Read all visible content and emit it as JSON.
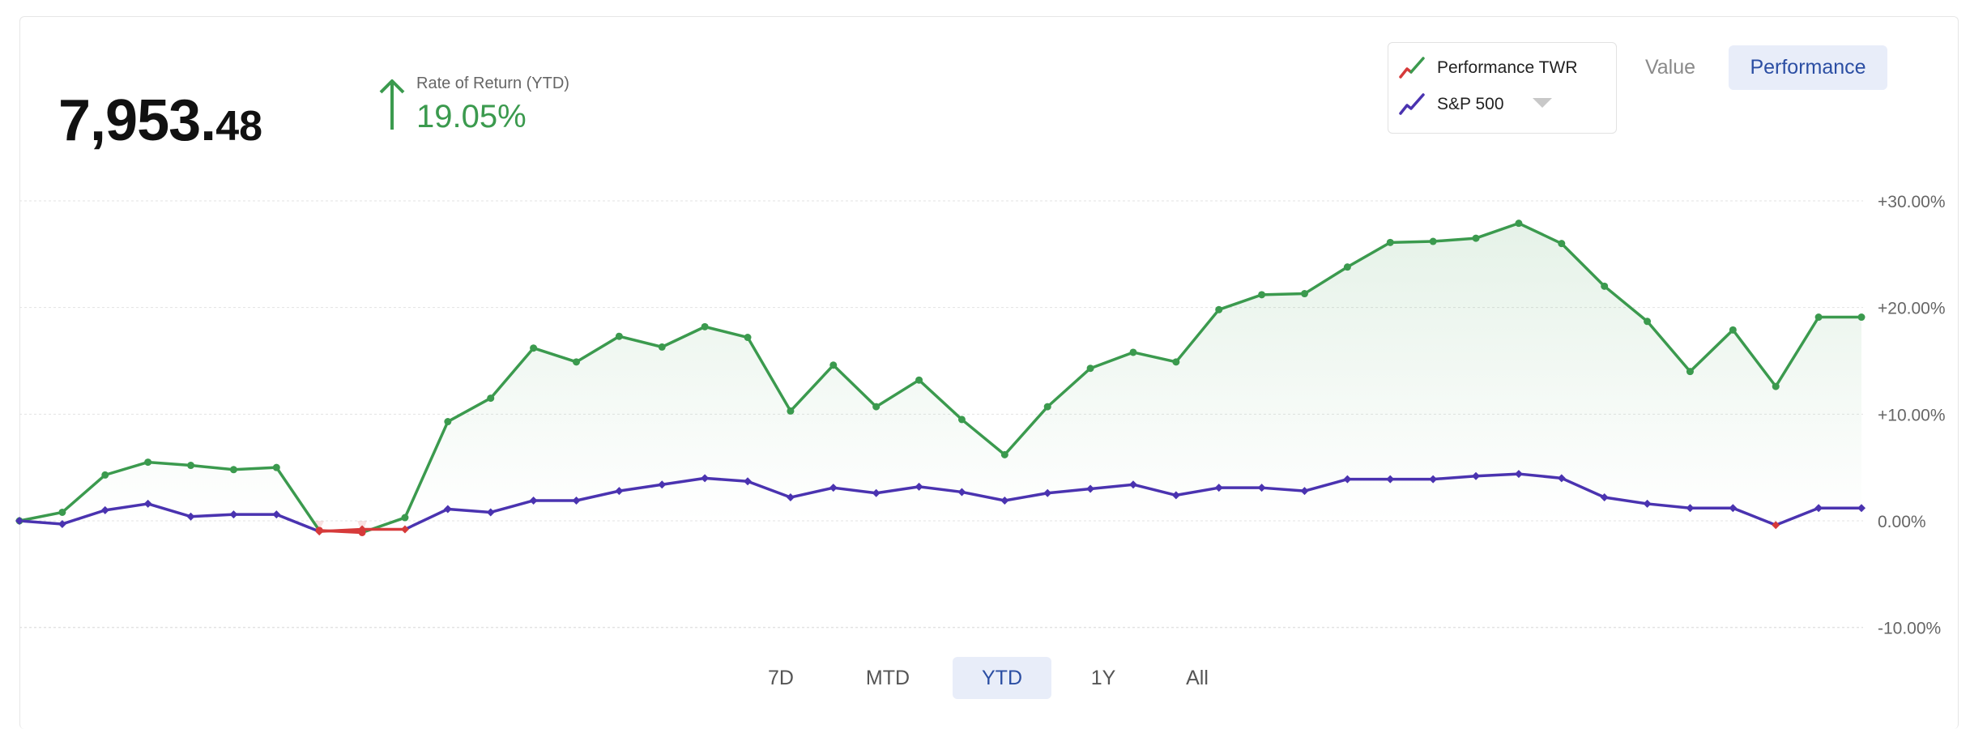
{
  "summary": {
    "value_main": "7,953.",
    "value_cents": "48",
    "ror_label": "Rate of Return (YTD)",
    "ror_value": "19.05%"
  },
  "legend": {
    "items": [
      {
        "label": "Performance TWR",
        "icon": "performance-line-icon"
      },
      {
        "label": "S&P 500",
        "icon": "benchmark-line-icon"
      }
    ]
  },
  "view_toggle": {
    "value_label": "Value",
    "performance_label": "Performance",
    "selected": "Performance"
  },
  "ranges": {
    "items": [
      "7D",
      "MTD",
      "YTD",
      "1Y",
      "All"
    ],
    "selected": "YTD"
  },
  "colors": {
    "performance": "#3b9a4e",
    "negative": "#d63a3a",
    "benchmark": "#4a33b0",
    "grid": "#e3e3e3",
    "accent_bg": "#e8edf9",
    "accent_text": "#2b4ea3"
  },
  "chart_data": {
    "type": "line",
    "ylim": [
      -10,
      30
    ],
    "yticks": [
      30,
      20,
      10,
      0,
      -10
    ],
    "ytick_labels": [
      "+30.00%",
      "+20.00%",
      "+10.00%",
      "0.00%",
      "-10.00%"
    ],
    "grid": true,
    "x": [
      0,
      1,
      2,
      3,
      4,
      5,
      6,
      7,
      8,
      9,
      10,
      11,
      12,
      13,
      14,
      15,
      16,
      17,
      18,
      19,
      20,
      21,
      22,
      23,
      24,
      25,
      26,
      27,
      28,
      29,
      30,
      31,
      32,
      33,
      34,
      35,
      36,
      37,
      38,
      39,
      40,
      41,
      42,
      43
    ],
    "series": [
      {
        "name": "Performance TWR",
        "values": [
          0.0,
          0.8,
          4.3,
          5.5,
          5.2,
          4.8,
          5.0,
          -0.9,
          -1.1,
          0.3,
          9.3,
          11.5,
          16.2,
          14.9,
          17.3,
          16.3,
          18.2,
          17.2,
          10.3,
          14.6,
          10.7,
          13.2,
          9.5,
          6.2,
          10.7,
          14.3,
          15.8,
          14.9,
          19.8,
          21.2,
          21.3,
          23.8,
          26.1,
          26.2,
          26.5,
          27.9,
          26.0,
          22.0,
          18.7,
          14.0,
          17.9,
          12.6,
          19.1,
          19.1
        ]
      },
      {
        "name": "S&P 500",
        "values": [
          0.0,
          -0.3,
          1.0,
          1.6,
          0.4,
          0.6,
          0.6,
          -1.0,
          -0.8,
          -0.8,
          1.1,
          0.8,
          1.9,
          1.9,
          2.8,
          3.4,
          4.0,
          3.7,
          2.2,
          3.1,
          2.6,
          3.2,
          2.7,
          1.9,
          2.6,
          3.0,
          3.4,
          2.4,
          3.1,
          3.1,
          2.8,
          3.9,
          3.9,
          3.9,
          4.2,
          4.4,
          4.0,
          2.2,
          1.6,
          1.2,
          1.2,
          -0.4,
          1.2,
          1.2
        ]
      }
    ]
  }
}
